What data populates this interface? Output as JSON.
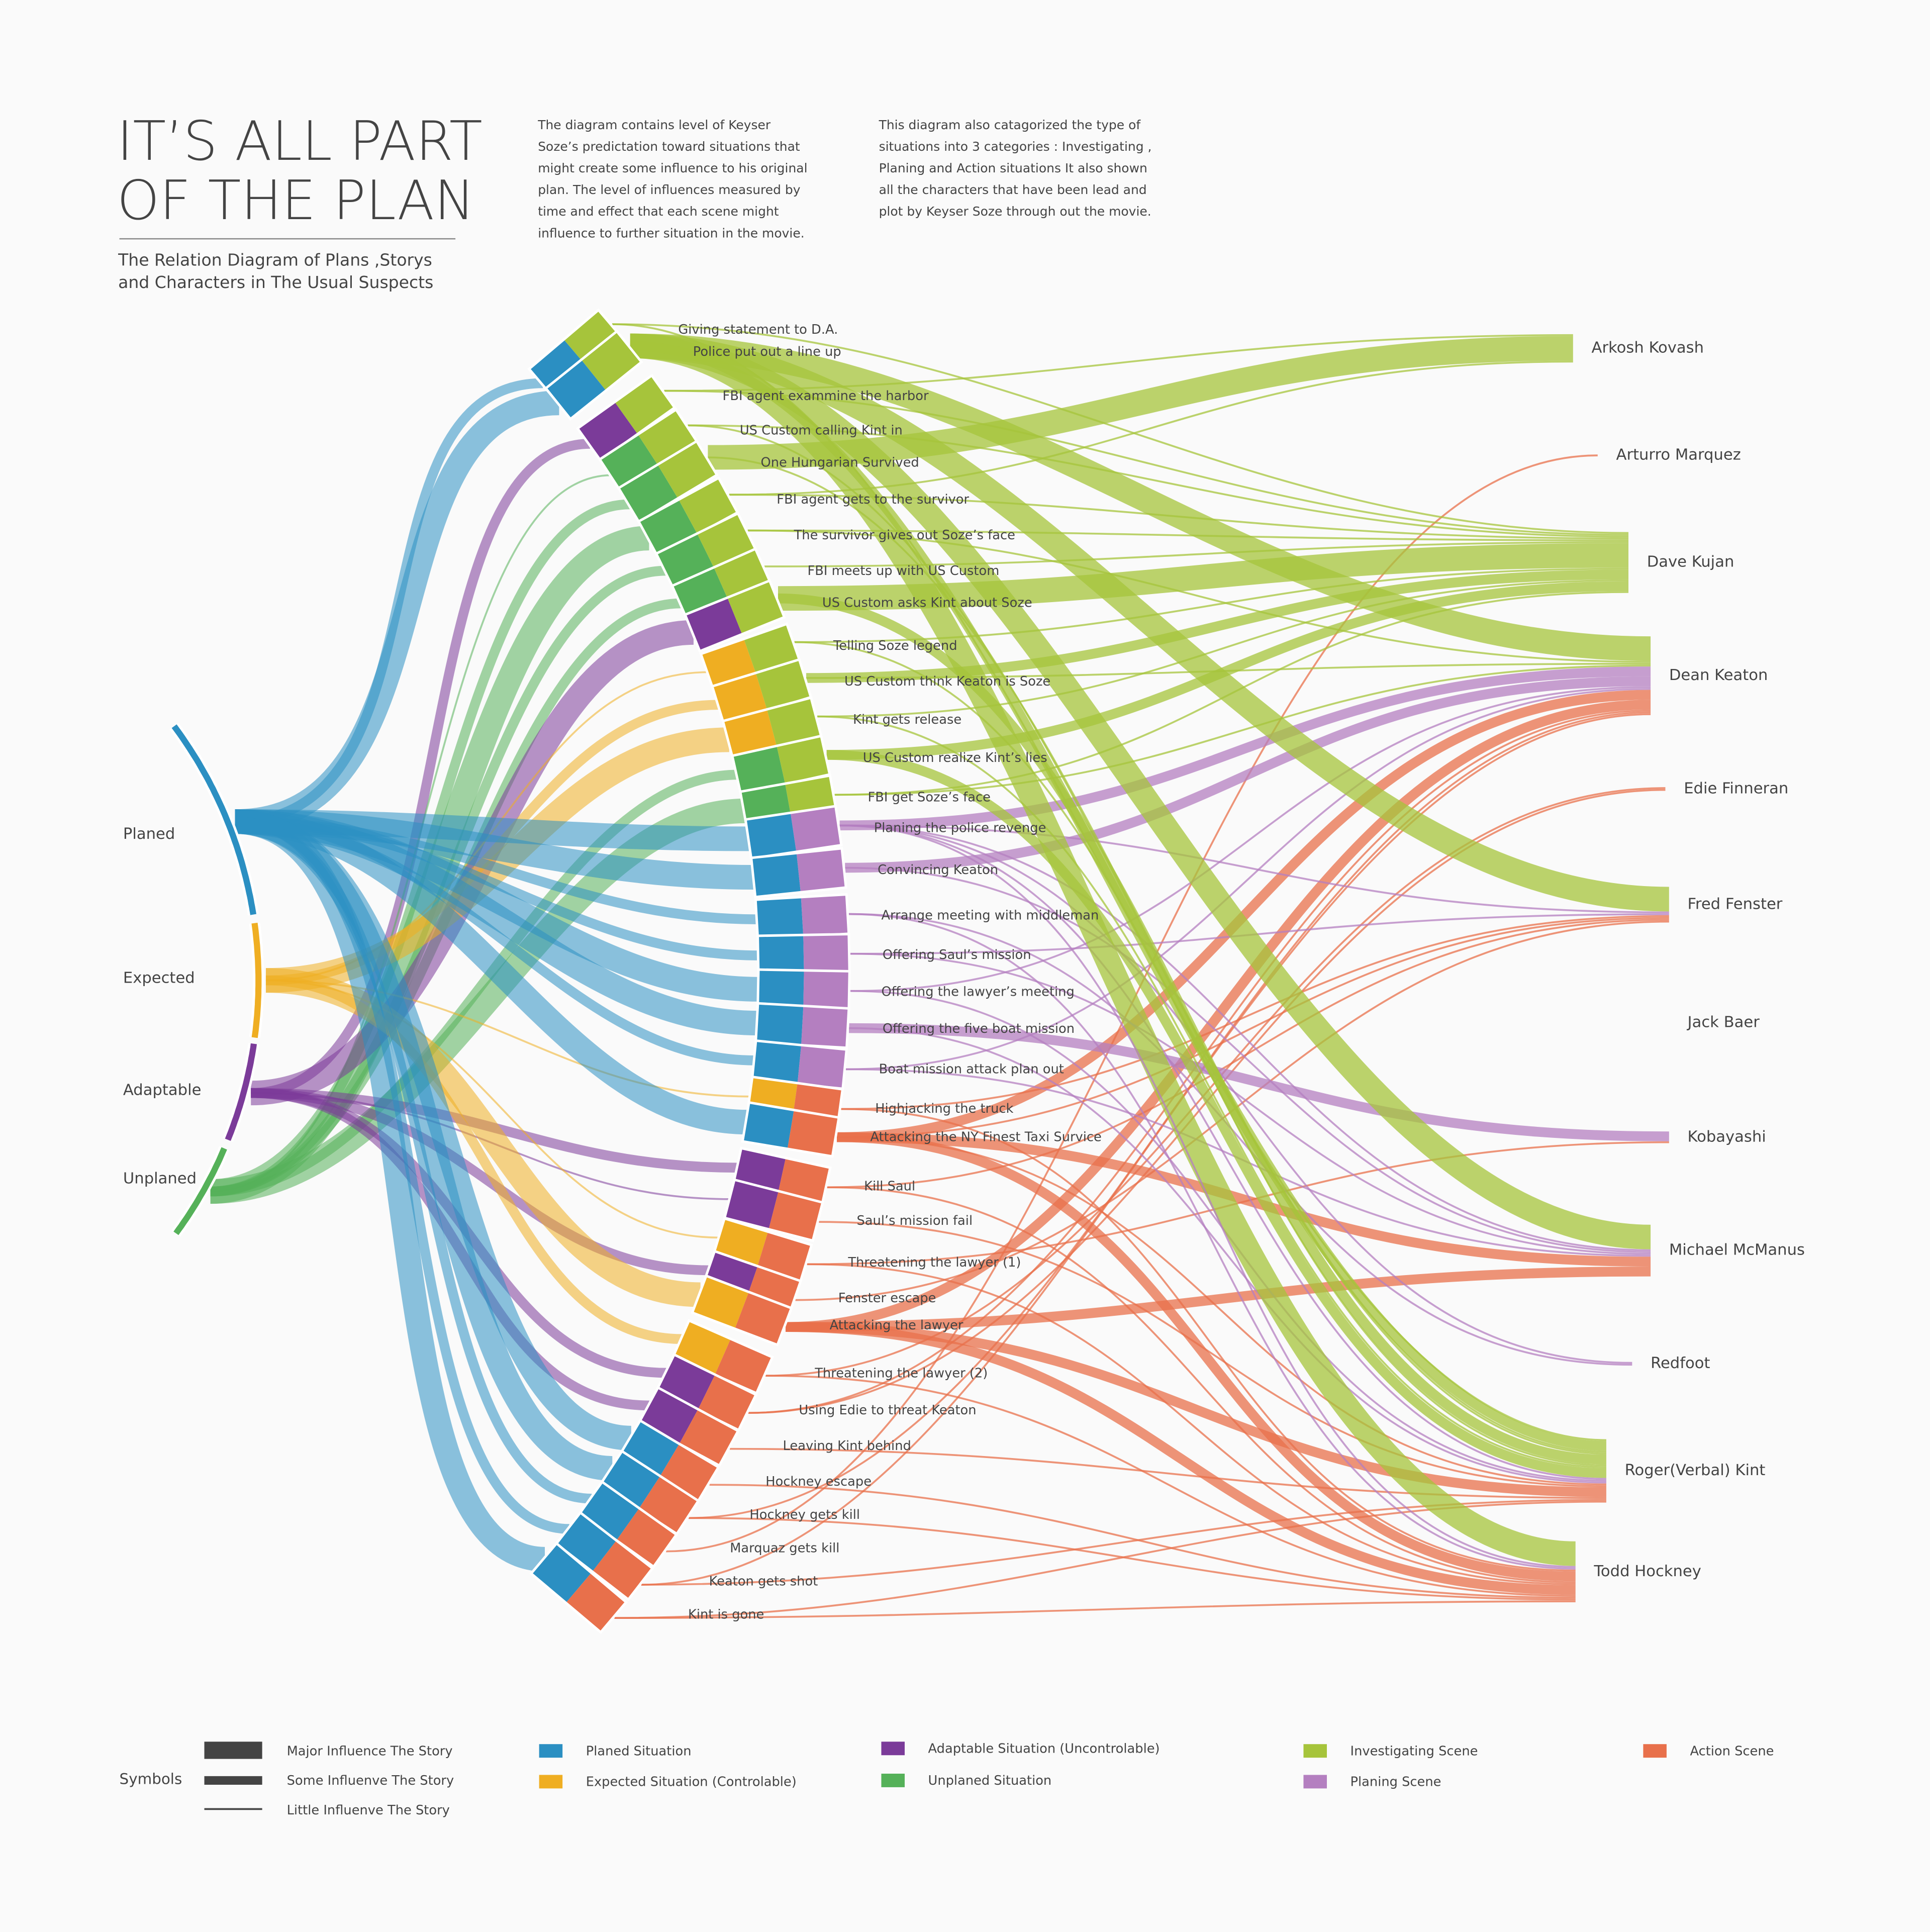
{
  "header": {
    "title_lines": [
      "IT’S ALL PART",
      "OF THE PLAN"
    ],
    "subtitle_lines": [
      "The Relation Diagram of Plans ,Storys",
      "and Characters in The Usual Suspects"
    ],
    "description_1": [
      "The diagram contains level of Keyser",
      "Soze’s predictation toward situations that",
      "might create some influence to his original",
      "plan. The level of influences measured by",
      "time and effect that each scene might",
      "influence to further situation in the movie."
    ],
    "description_2": [
      "This diagram also catagorized the type of",
      "situations into 3 categories : Investigating ,",
      "Planing and Action situations It also shown",
      "all the characters that have been lead and",
      "plot by Keyser Soze through out the movie."
    ]
  },
  "categories": [
    "Planed",
    "Expected",
    "Adaptable",
    "Unplaned"
  ],
  "scenes": [
    "Giving statement to D.A.",
    "Police put out a line up",
    "FBI agent exammine the harbor",
    "US Custom calling Kint in",
    "One Hungarian Survived",
    "FBI agent gets to the survivor",
    "The survivor gives out Soze’s face",
    "FBI meets up with US Custom",
    "US Custom asks Kint about Soze",
    "Telling Soze legend",
    "US Custom think Keaton is Soze",
    "Kint gets release",
    "US Custom realize Kint’s lies",
    "FBI get Soze’s face",
    "Planing the police revenge",
    "Convincing Keaton",
    "Arrange meeting with middleman",
    "Offering Saul’s mission",
    "Offering the lawyer’s meeting",
    "Offering the five boat mission",
    "Boat mission attack plan out",
    "Highjacking the truck",
    "Attacking the NY Finest Taxi Survice",
    "Kill Saul",
    "Saul’s mission fail",
    "Threatening the lawyer (1)",
    "Fenster escape",
    "Attacking the lawyer",
    "Threatening the lawyer (2)",
    "Using Edie to threat Keaton",
    "Leaving Kint behind",
    "Hockney escape",
    "Hockney gets kill",
    "Marquaz gets kill",
    "Keaton gets shot",
    "Kint is gone"
  ],
  "characters": [
    "Arkosh Kovash",
    "Arturro Marquez",
    "Dave Kujan",
    "Dean Keaton",
    "Edie Finneran",
    "Fred Fenster",
    "Jack Baer",
    "Kobayashi",
    "Michael McManus",
    "Redfoot",
    "Roger(Verbal) Kint",
    "Todd Hockney"
  ],
  "legend": {
    "symbols_title": "Symbols",
    "influence": [
      "Major Influence The Story",
      "Some Influenve The Story",
      "Little Influenve  The Story"
    ],
    "colors": [
      {
        "label": "Planed Situation",
        "color": "#2b8fc2"
      },
      {
        "label": "Expected Situation (Controlable)",
        "color": "#efae22"
      },
      {
        "label": "Adaptable Situation (Uncontrolable)",
        "color": "#7b3b99"
      },
      {
        "label": "Unplaned Situation",
        "color": "#55b159"
      },
      {
        "label": "Investigating Scene",
        "color": "#a6c43b"
      },
      {
        "label": "Planing Scene",
        "color": "#b47fc0"
      },
      {
        "label": "Action Scene",
        "color": "#e8704b"
      }
    ]
  }
}
